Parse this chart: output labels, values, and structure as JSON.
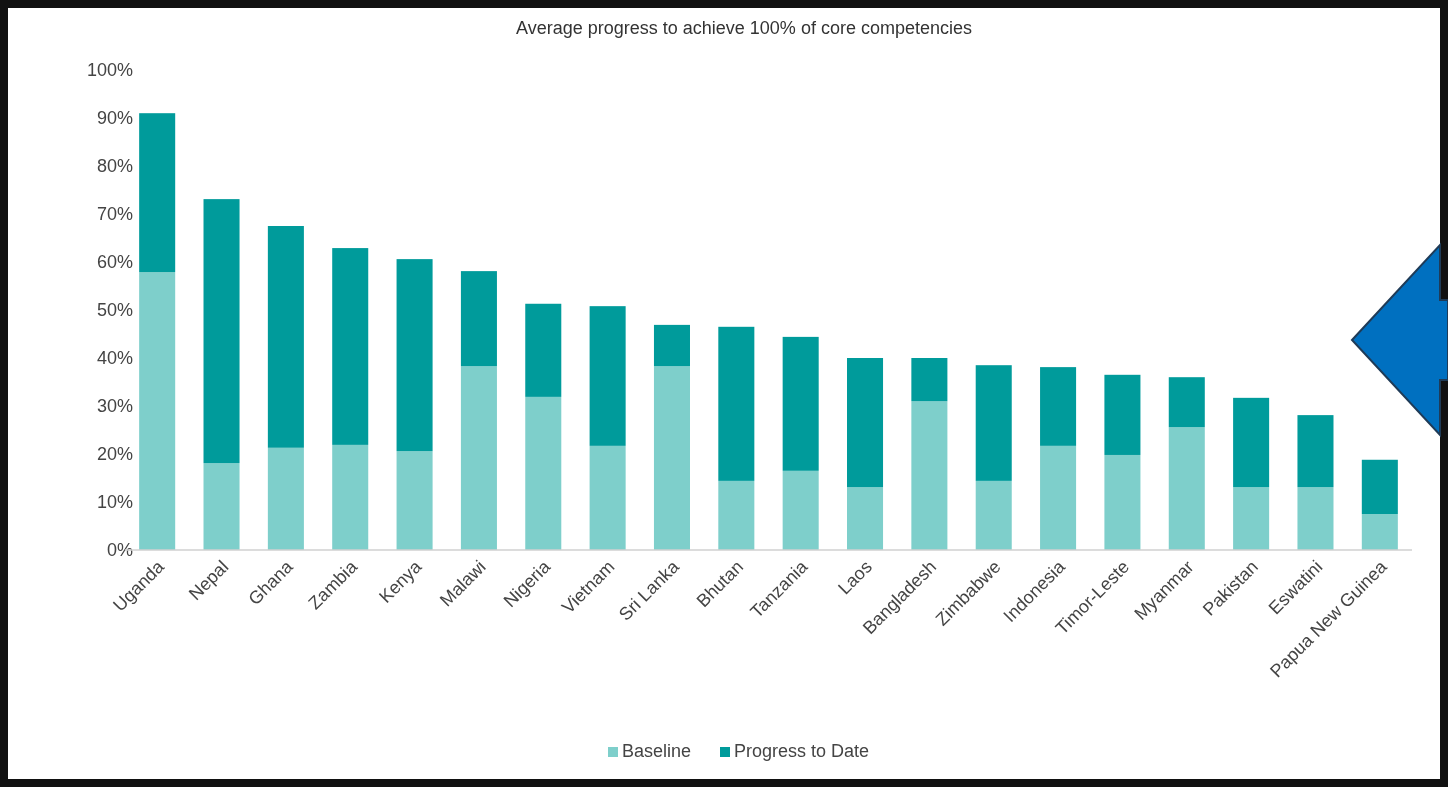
{
  "chart_data": {
    "type": "bar",
    "title": "Average progress to achieve 100% of core competencies",
    "categories": [
      "Uganda",
      "Nepal",
      "Ghana",
      "Zambia",
      "Kenya",
      "Malawi",
      "Nigeria",
      "Vietnam",
      "Sri Lanka",
      "Bhutan",
      "Tanzania",
      "Laos",
      "Bangladesh",
      "Zimbabwe",
      "Indonesia",
      "Timor-Leste",
      "Myanmar",
      "Pakistan",
      "Eswatini",
      "Papua New Guinea"
    ],
    "stacked": true,
    "series": [
      {
        "name": "Baseline",
        "color": "#7ecfcb",
        "values": [
          57.9,
          18.1,
          21.3,
          21.9,
          20.6,
          38.3,
          31.9,
          21.7,
          38.3,
          14.4,
          16.5,
          13.1,
          31.0,
          14.4,
          21.7,
          19.8,
          25.6,
          13.1,
          13.1,
          7.5
        ]
      },
      {
        "name": "Progress to Date",
        "color": "#009b9b",
        "values": [
          33.1,
          55.0,
          46.2,
          41.0,
          40.0,
          19.8,
          19.4,
          29.1,
          8.6,
          32.1,
          27.9,
          26.9,
          9.0,
          24.1,
          16.4,
          16.7,
          10.4,
          18.6,
          15.0,
          11.3
        ]
      }
    ],
    "ylim": [
      0,
      100
    ],
    "yticks": [
      {
        "value": 0,
        "label": "0%"
      },
      {
        "value": 10,
        "label": "10%"
      },
      {
        "value": 20,
        "label": "20%"
      },
      {
        "value": 30,
        "label": "30%"
      },
      {
        "value": 40,
        "label": "40%"
      },
      {
        "value": 50,
        "label": "50%"
      },
      {
        "value": 60,
        "label": "60%"
      },
      {
        "value": 70,
        "label": "70%"
      },
      {
        "value": 80,
        "label": "80%"
      },
      {
        "value": 90,
        "label": "90%"
      },
      {
        "value": 100,
        "label": "100%"
      }
    ],
    "grid": false,
    "legend": "bottom"
  }
}
